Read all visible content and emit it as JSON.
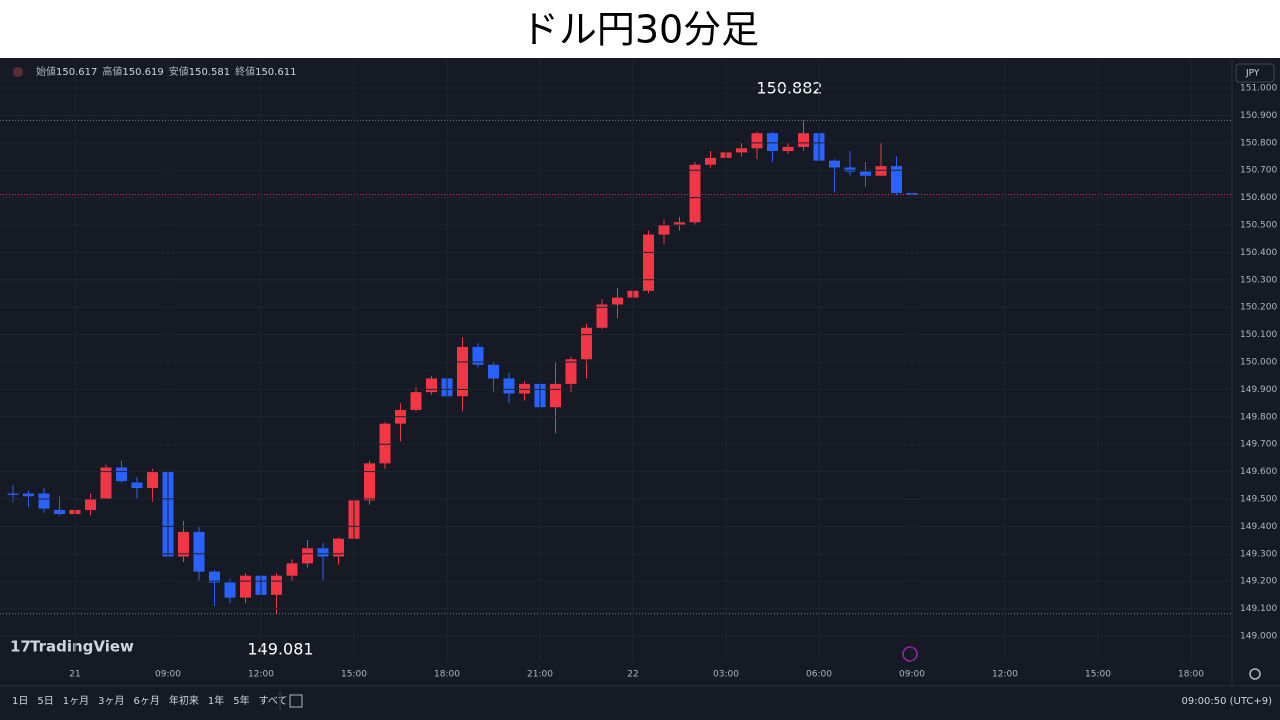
{
  "title": "ドル円30分足",
  "chart_data": {
    "type": "candlestick",
    "categories": [
      null,
      null,
      null,
      null,
      "21",
      null,
      null,
      null,
      null,
      null,
      "09:00",
      null,
      null,
      null,
      null,
      null,
      "12:00",
      null,
      null,
      null,
      null,
      null,
      "15:00",
      null,
      null,
      null,
      null,
      null,
      "18:00",
      null,
      null,
      null,
      null,
      null,
      "21:00",
      null,
      null,
      null,
      null,
      null,
      "22",
      null,
      null,
      null,
      null,
      null,
      "03:00",
      null,
      null,
      null,
      null,
      null,
      "06:00",
      null,
      null,
      null,
      null,
      null,
      "09:00",
      null,
      null,
      null,
      null,
      null,
      "12:00",
      null,
      null,
      null,
      null,
      null,
      "15:00",
      null,
      null,
      null,
      null,
      null,
      "18:00"
    ],
    "open": [
      149.52,
      149.52,
      149.52,
      149.46,
      149.445,
      149.46,
      149.5,
      149.615,
      149.56,
      149.54,
      149.6,
      149.29,
      149.38,
      149.235,
      149.195,
      149.14,
      149.22,
      149.15,
      149.22,
      149.265,
      149.32,
      149.29,
      149.355,
      149.495,
      149.63,
      149.775,
      149.825,
      149.89,
      149.94,
      149.875,
      150.055,
      149.99,
      149.94,
      149.885,
      149.92,
      149.835,
      149.92,
      150.01,
      150.125,
      150.21,
      150.235,
      150.26,
      150.465,
      150.5,
      150.51,
      150.72,
      150.745,
      150.765,
      150.78,
      150.835,
      150.77,
      150.785,
      150.835,
      150.735,
      150.71,
      150.695,
      150.68,
      150.715,
      150.617,
      null,
      null,
      null,
      null,
      null,
      null,
      null,
      null,
      null,
      null,
      null,
      null,
      null,
      null,
      null,
      null,
      null,
      null
    ],
    "high": [
      149.55,
      149.53,
      149.54,
      149.51,
      149.54,
      149.52,
      149.625,
      149.64,
      149.58,
      149.61,
      149.61,
      149.42,
      149.4,
      149.24,
      149.21,
      149.23,
      149.28,
      149.23,
      149.28,
      149.35,
      149.34,
      149.36,
      149.51,
      149.64,
      149.78,
      149.85,
      149.91,
      149.95,
      149.96,
      150.09,
      150.07,
      150.0,
      149.96,
      149.93,
      150.03,
      150.0,
      150.02,
      150.14,
      150.23,
      150.27,
      150.32,
      150.48,
      150.52,
      150.53,
      150.73,
      150.77,
      150.79,
      150.8,
      150.84,
      150.84,
      150.8,
      150.882,
      150.84,
      150.74,
      150.77,
      150.73,
      150.8,
      150.75,
      150.619,
      null,
      null,
      null,
      null,
      null,
      null,
      null,
      null,
      null,
      null,
      null,
      null,
      null,
      null,
      null,
      null,
      null,
      null
    ],
    "low": [
      149.49,
      149.47,
      149.45,
      149.44,
      149.44,
      149.44,
      149.5,
      149.56,
      149.5,
      149.49,
      149.28,
      149.27,
      149.2,
      149.11,
      149.12,
      149.12,
      149.13,
      149.081,
      149.2,
      149.25,
      149.2,
      149.26,
      149.31,
      149.48,
      149.61,
      149.71,
      149.82,
      149.88,
      149.86,
      149.82,
      149.98,
      149.89,
      149.85,
      149.86,
      149.83,
      149.74,
      149.89,
      149.94,
      150.12,
      150.16,
      150.22,
      150.25,
      150.43,
      150.48,
      150.5,
      150.71,
      150.72,
      150.75,
      150.74,
      150.73,
      150.76,
      150.77,
      150.68,
      150.62,
      150.68,
      150.64,
      150.68,
      150.61,
      150.581,
      null,
      null,
      null,
      null,
      null,
      null,
      null,
      null,
      null,
      null,
      null,
      null,
      null,
      null,
      null,
      null,
      null,
      null
    ],
    "close": [
      149.515,
      149.51,
      149.465,
      149.445,
      149.46,
      149.5,
      149.615,
      149.565,
      149.54,
      149.6,
      149.29,
      149.38,
      149.235,
      149.195,
      149.14,
      149.22,
      149.15,
      149.22,
      149.265,
      149.32,
      149.29,
      149.355,
      149.495,
      149.63,
      149.775,
      149.825,
      149.89,
      149.94,
      149.875,
      150.055,
      149.99,
      149.94,
      149.885,
      149.92,
      149.835,
      149.92,
      150.01,
      150.125,
      150.21,
      150.235,
      150.26,
      150.465,
      150.5,
      150.51,
      150.72,
      150.745,
      150.765,
      150.78,
      150.835,
      150.77,
      150.785,
      150.835,
      150.735,
      150.71,
      150.695,
      150.68,
      150.715,
      150.617,
      150.611,
      null,
      null,
      null,
      null,
      null,
      null,
      null,
      null,
      null,
      null,
      null,
      null,
      null,
      null,
      null,
      null,
      null,
      null
    ],
    "up_color": "#f23645",
    "down_color": "#2962ff",
    "ylim": [
      148.905,
      151.095
    ],
    "yticks": [
      {
        "value": 151,
        "label": "151.000"
      },
      {
        "value": 150.9,
        "label": "150.900"
      },
      {
        "value": 150.8,
        "label": "150.800"
      },
      {
        "value": 150.7,
        "label": "150.700"
      },
      {
        "value": 150.6,
        "label": "150.600"
      },
      {
        "value": 150.5,
        "label": "150.500"
      },
      {
        "value": 150.4,
        "label": "150.400"
      },
      {
        "value": 150.3,
        "label": "150.300"
      },
      {
        "value": 150.2,
        "label": "150.200"
      },
      {
        "value": 150.1,
        "label": "150.100"
      },
      {
        "value": 150,
        "label": "150.000"
      },
      {
        "value": 149.9,
        "label": "149.900"
      },
      {
        "value": 149.8,
        "label": "149.800"
      },
      {
        "value": 149.7,
        "label": "149.700"
      },
      {
        "value": 149.6,
        "label": "149.600"
      },
      {
        "value": 149.5,
        "label": "149.500"
      },
      {
        "value": 149.4,
        "label": "149.400"
      },
      {
        "value": 149.3,
        "label": "149.300"
      },
      {
        "value": 149.2,
        "label": "149.200"
      },
      {
        "value": 149.1,
        "label": "149.100"
      },
      {
        "value": 149,
        "label": "149.000"
      }
    ],
    "grid": true,
    "legend_labels": [
      "始値",
      "高値",
      "安値",
      "終値"
    ],
    "currency": "JPY"
  },
  "toolbar": {
    "ranges": [
      "1日",
      "5日",
      "1ヶ月",
      "3ヶ月",
      "6ヶ月",
      "年初来",
      "1年",
      "5年",
      "すべて"
    ],
    "clock": "09:00:50 (UTC+9)"
  },
  "branding": "TradingView"
}
